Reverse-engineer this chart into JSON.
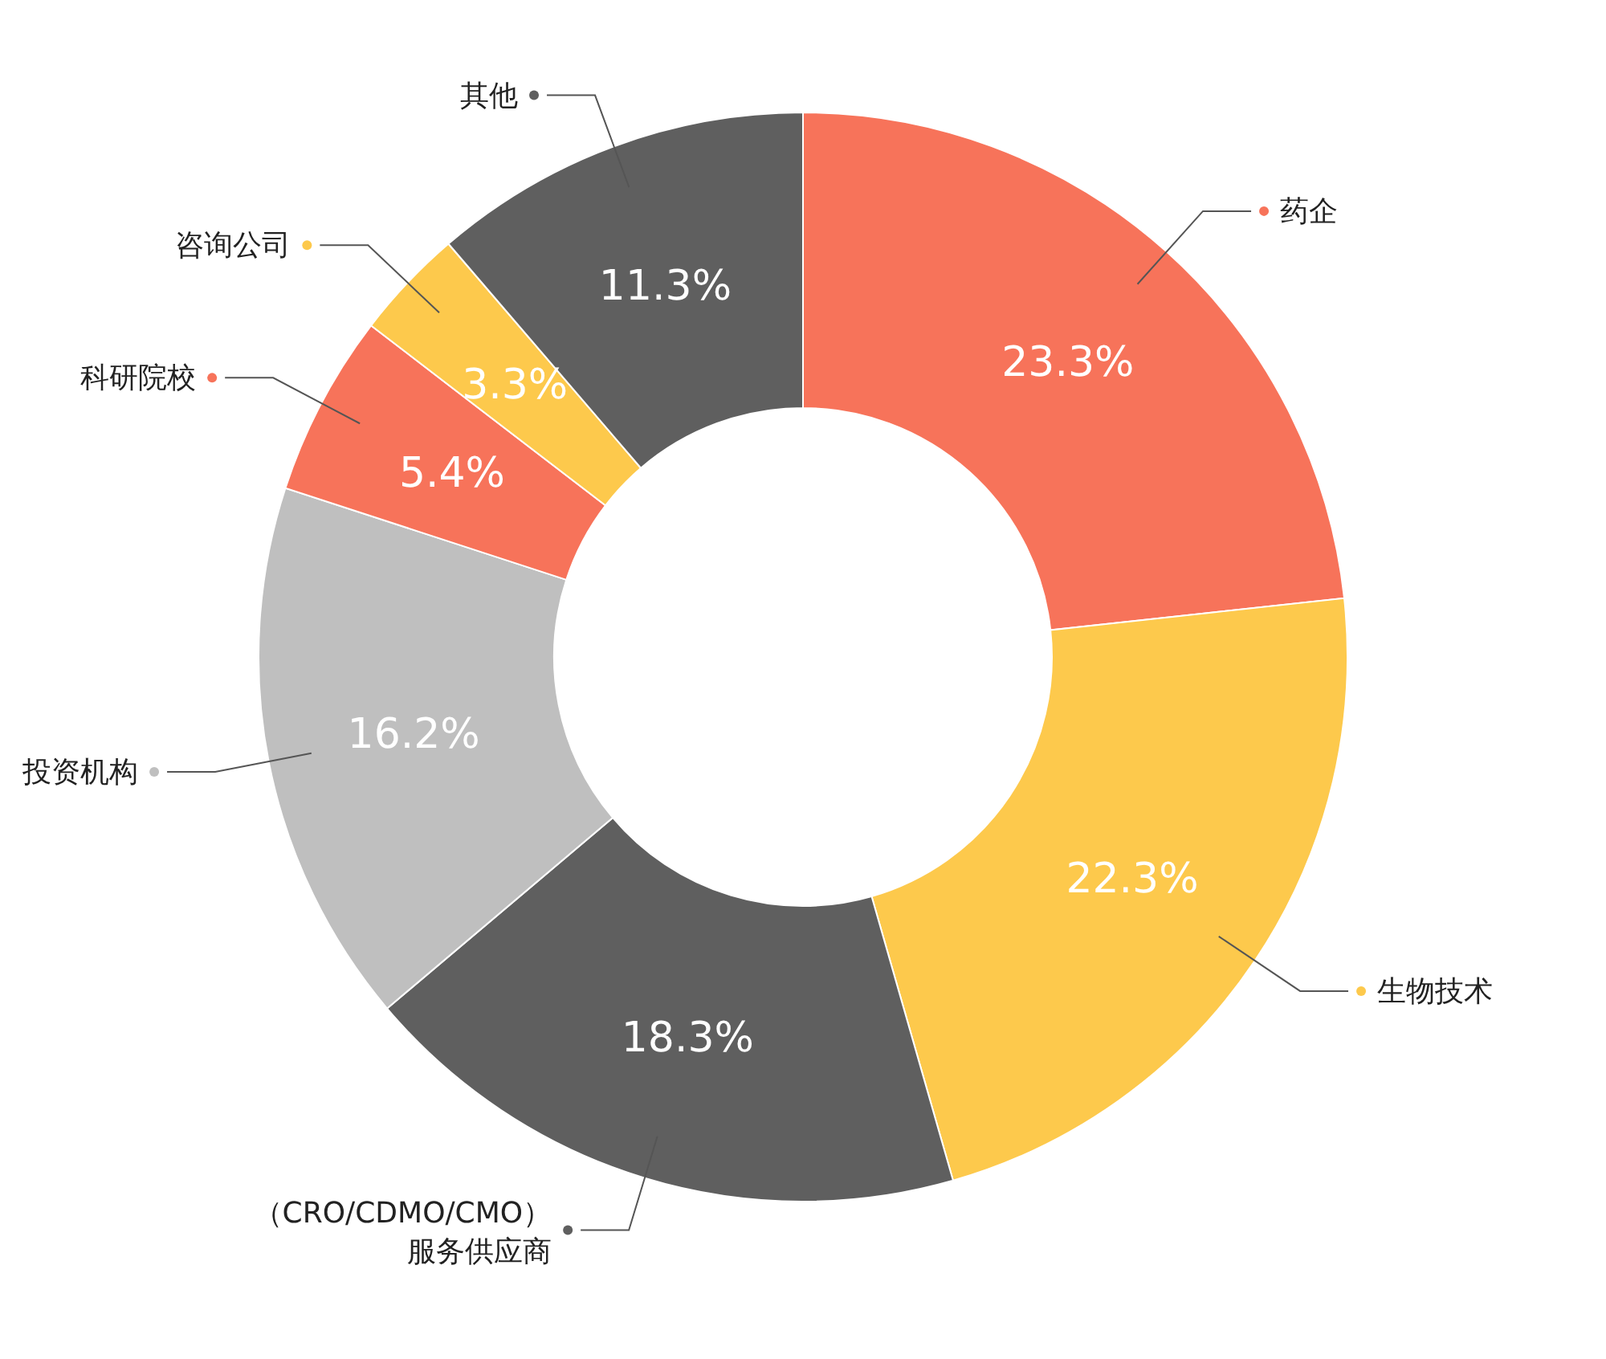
{
  "chart_data": {
    "type": "donut",
    "categories": [
      "药企",
      "生物技术",
      "（CRO/CDMO/CMO）服务供应商",
      "投资机构",
      "科研院校",
      "咨询公司",
      "其他"
    ],
    "values": [
      23.3,
      22.3,
      18.3,
      16.2,
      5.4,
      3.3,
      11.3
    ],
    "colors": [
      "#f7735a",
      "#fdc94c",
      "#5f5f5f",
      "#bfbfbf",
      "#f7735a",
      "#fdc94c",
      "#5f5f5f"
    ],
    "value_labels": [
      "23.3%",
      "22.3%",
      "18.3%",
      "16.2%",
      "5.4%",
      "3.3%",
      "11.3%"
    ],
    "legend": "left"
  }
}
